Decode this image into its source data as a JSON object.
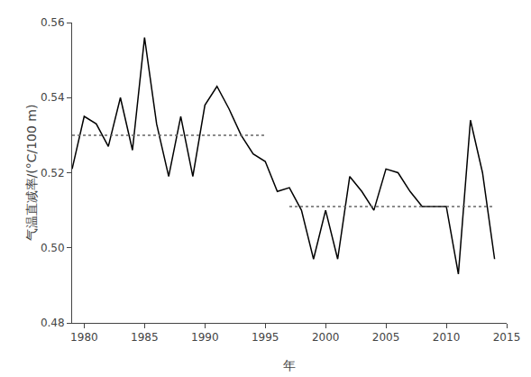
{
  "chart_data": {
    "type": "line",
    "xlabel": "年",
    "ylabel": "气温直减率/(°C/100 m)",
    "x": [
      1979,
      1980,
      1981,
      1982,
      1983,
      1984,
      1985,
      1986,
      1987,
      1988,
      1989,
      1990,
      1991,
      1992,
      1993,
      1994,
      1995,
      1996,
      1997,
      1998,
      1999,
      2000,
      2001,
      2002,
      2003,
      2004,
      2005,
      2006,
      2007,
      2008,
      2009,
      2010,
      2011,
      2012,
      2013,
      2014
    ],
    "values": [
      0.521,
      0.535,
      0.533,
      0.527,
      0.54,
      0.526,
      0.556,
      0.533,
      0.519,
      0.535,
      0.519,
      0.538,
      0.543,
      0.537,
      0.53,
      0.525,
      0.523,
      0.515,
      0.516,
      0.51,
      0.497,
      0.51,
      0.497,
      0.519,
      0.515,
      0.51,
      0.521,
      0.52,
      0.515,
      0.511,
      0.511,
      0.511,
      0.493,
      0.534,
      0.52,
      0.497
    ],
    "color": "#000000",
    "hlines": [
      {
        "y": 0.53,
        "xmin": 1979,
        "xmax": 1995,
        "color": "#666666",
        "line_style": "dotted"
      },
      {
        "y": 0.511,
        "xmin": 1997,
        "xmax": 2014,
        "color": "#666666",
        "line_style": "dotted"
      }
    ],
    "xlim": [
      1979,
      2015
    ],
    "xticks": [
      1980,
      1985,
      1990,
      1995,
      2000,
      2005,
      2010,
      2015
    ],
    "ylim": [
      0.48,
      0.56
    ],
    "yticks": [
      0.48,
      {
        "value": 0.5,
        "label": "0.50"
      },
      0.52,
      0.54,
      0.56
    ],
    "grid": false
  }
}
